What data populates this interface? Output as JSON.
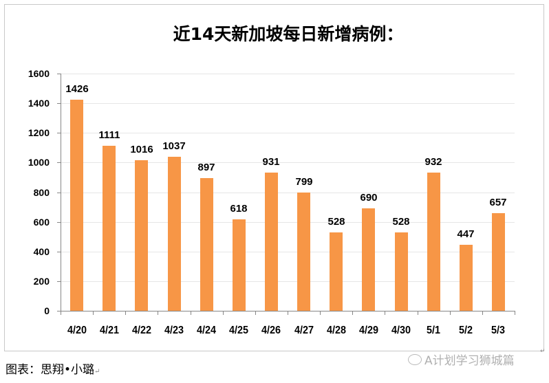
{
  "chart_data": {
    "type": "bar",
    "title": "近14天新加坡每日新增病例：",
    "categories": [
      "4/20",
      "4/21",
      "4/22",
      "4/23",
      "4/24",
      "4/25",
      "4/26",
      "4/27",
      "4/28",
      "4/29",
      "4/30",
      "5/1",
      "5/2",
      "5/3"
    ],
    "values": [
      1426,
      1111,
      1016,
      1037,
      897,
      618,
      931,
      799,
      528,
      690,
      528,
      932,
      447,
      657
    ],
    "xlabel": "",
    "ylabel": "",
    "ylim": [
      0,
      1600
    ],
    "yticks": [
      0,
      200,
      400,
      600,
      800,
      1000,
      1200,
      1400,
      1600
    ],
    "grid": true,
    "legend": null,
    "data_labels": true,
    "bar_color": "#f79646"
  },
  "caption": "图表：思翔•小璐",
  "watermark": "A计划学习狮城篇",
  "return_mark": "↵"
}
